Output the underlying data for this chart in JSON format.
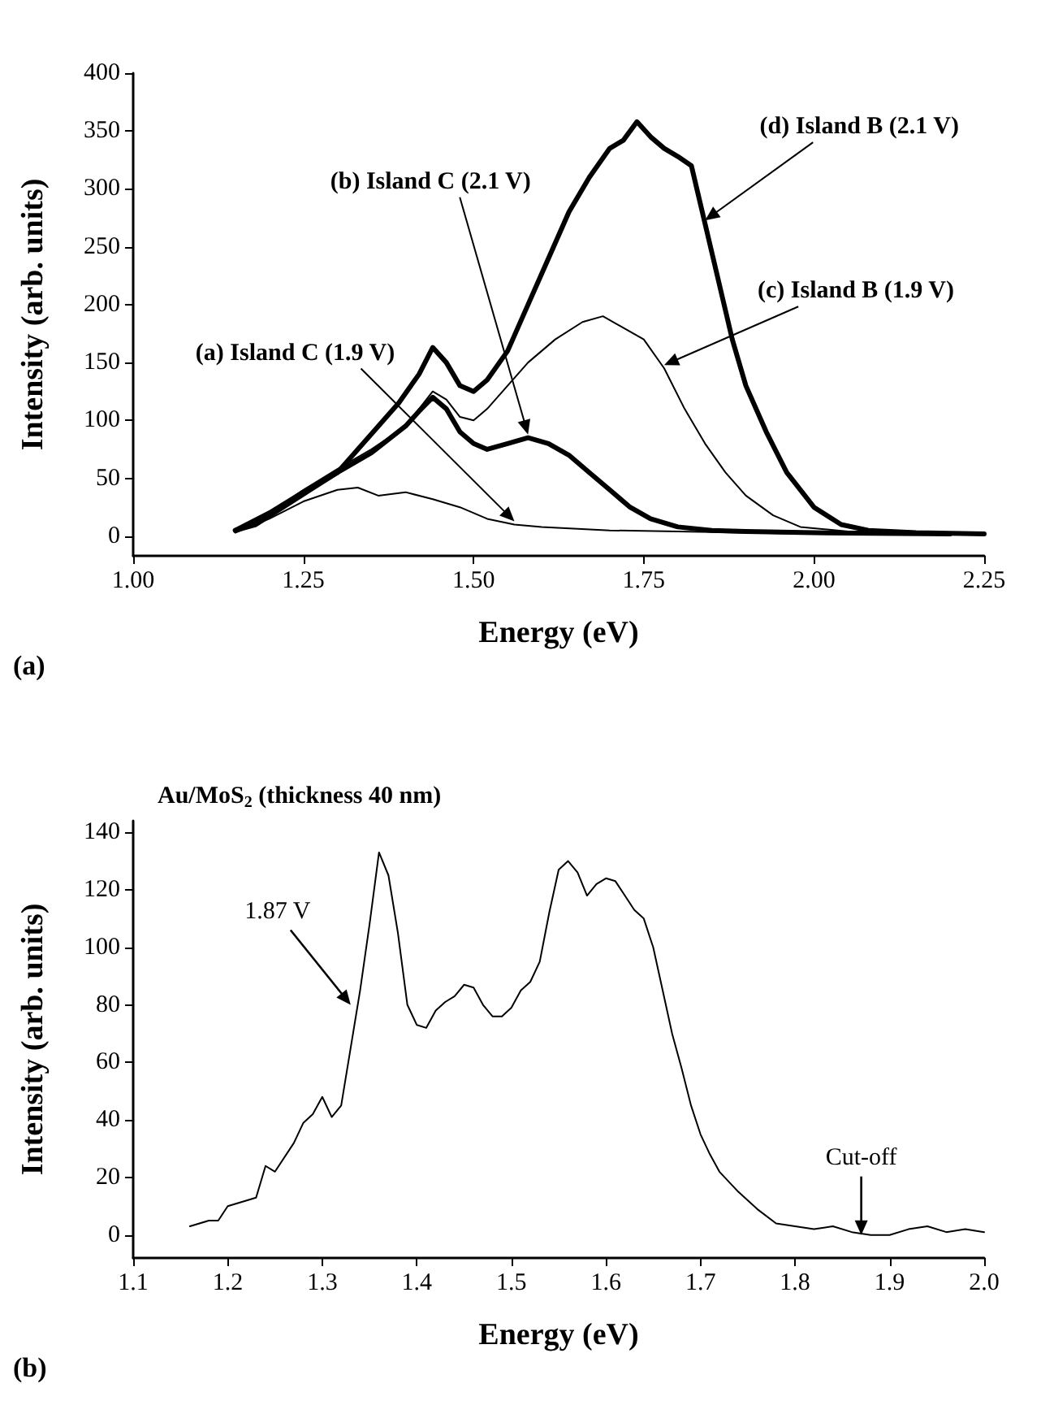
{
  "chart_data": [
    {
      "type": "line",
      "xlabel": "Energy (eV)",
      "ylabel": "Intensity (arb. units)",
      "marker": "none",
      "line_style": "solid",
      "legend": false,
      "grid": false,
      "xlim": [
        1.0,
        2.25
      ],
      "xticks": [
        {
          "value": 1,
          "label": "1.00"
        },
        {
          "value": 1.25,
          "label": "1.25"
        },
        {
          "value": 1.5,
          "label": "1.50"
        },
        {
          "value": 1.75,
          "label": "1.75"
        },
        {
          "value": 2,
          "label": "2.00"
        },
        {
          "value": 2.25,
          "label": "2.25"
        }
      ],
      "ylim": [
        -17,
        400
      ],
      "yticks": [
        0,
        50,
        100,
        150,
        200,
        250,
        300,
        350,
        400
      ],
      "annotations": [
        "(a)"
      ],
      "series": [
        {
          "name": "(a) Island C (1.9 V)",
          "color": "#000000",
          "x": [
            1.15,
            1.2,
            1.25,
            1.3,
            1.33,
            1.36,
            1.4,
            1.44,
            1.48,
            1.52,
            1.56,
            1.6,
            1.7,
            1.8,
            1.9,
            2.0
          ],
          "values": [
            3,
            15,
            30,
            40,
            42,
            35,
            38,
            32,
            25,
            15,
            10,
            8,
            5,
            4,
            3,
            2
          ]
        },
        {
          "name": "(b) Island C (2.1 V)",
          "color": "#000000",
          "x": [
            1.15,
            1.2,
            1.25,
            1.3,
            1.35,
            1.4,
            1.42,
            1.44,
            1.46,
            1.48,
            1.5,
            1.52,
            1.55,
            1.58,
            1.61,
            1.64,
            1.67,
            1.7,
            1.73,
            1.76,
            1.8,
            1.85,
            1.9,
            2.0,
            2.2
          ],
          "values": [
            5,
            20,
            38,
            55,
            72,
            95,
            108,
            120,
            110,
            90,
            80,
            75,
            80,
            85,
            80,
            70,
            55,
            40,
            25,
            15,
            8,
            5,
            4,
            3,
            2
          ]
        },
        {
          "name": "(c) Island B (1.9 V)",
          "color": "#000000",
          "x": [
            1.15,
            1.2,
            1.25,
            1.3,
            1.35,
            1.4,
            1.42,
            1.44,
            1.46,
            1.48,
            1.5,
            1.52,
            1.55,
            1.58,
            1.62,
            1.66,
            1.69,
            1.72,
            1.75,
            1.78,
            1.81,
            1.84,
            1.87,
            1.9,
            1.94,
            1.98,
            2.05,
            2.25
          ],
          "values": [
            5,
            20,
            40,
            58,
            75,
            95,
            110,
            125,
            118,
            103,
            100,
            110,
            130,
            150,
            170,
            185,
            190,
            180,
            170,
            145,
            110,
            80,
            55,
            35,
            18,
            8,
            4,
            2
          ]
        },
        {
          "name": "(d) Island B (2.1 V)",
          "color": "#000000",
          "x": [
            1.15,
            1.18,
            1.22,
            1.26,
            1.3,
            1.33,
            1.36,
            1.39,
            1.42,
            1.44,
            1.46,
            1.48,
            1.5,
            1.52,
            1.55,
            1.58,
            1.61,
            1.64,
            1.67,
            1.7,
            1.72,
            1.74,
            1.76,
            1.78,
            1.8,
            1.82,
            1.84,
            1.86,
            1.88,
            1.9,
            1.93,
            1.96,
            2.0,
            2.04,
            2.08,
            2.15,
            2.25
          ],
          "values": [
            5,
            10,
            25,
            40,
            55,
            75,
            95,
            115,
            140,
            163,
            150,
            130,
            125,
            135,
            160,
            200,
            240,
            280,
            310,
            335,
            342,
            358,
            345,
            335,
            328,
            320,
            270,
            220,
            170,
            130,
            90,
            55,
            25,
            10,
            5,
            3,
            2
          ]
        }
      ]
    },
    {
      "type": "line",
      "title": "Au/MoS$_{2}$ (thickness 40 nm)",
      "xlabel": "Energy (eV)",
      "ylabel": "Intensity (arb. units)",
      "marker": "none",
      "line_style": "solid",
      "legend": false,
      "grid": false,
      "xlim": [
        1.1,
        2.0
      ],
      "xticks": [
        1.1,
        1.2,
        1.3,
        1.4,
        1.5,
        1.6,
        1.7,
        1.8,
        1.9,
        {
          "value": 2,
          "label": "2.0"
        }
      ],
      "ylim": [
        -8,
        144
      ],
      "yticks": [
        0,
        20,
        40,
        60,
        80,
        100,
        120,
        140
      ],
      "annotations": [
        {
          "text": "1.87 V",
          "x": 1.33,
          "y": 80
        },
        {
          "text": "Cut-off",
          "x": 1.87,
          "y": 0
        },
        "(b)"
      ],
      "series": [
        {
          "color": "#000000",
          "x": [
            1.16,
            1.18,
            1.19,
            1.2,
            1.22,
            1.23,
            1.24,
            1.25,
            1.27,
            1.28,
            1.29,
            1.3,
            1.31,
            1.32,
            1.33,
            1.34,
            1.35,
            1.36,
            1.37,
            1.38,
            1.39,
            1.4,
            1.41,
            1.42,
            1.43,
            1.44,
            1.45,
            1.46,
            1.47,
            1.48,
            1.49,
            1.5,
            1.51,
            1.52,
            1.53,
            1.54,
            1.55,
            1.56,
            1.57,
            1.58,
            1.59,
            1.6,
            1.61,
            1.62,
            1.63,
            1.64,
            1.65,
            1.66,
            1.67,
            1.68,
            1.69,
            1.7,
            1.71,
            1.72,
            1.74,
            1.76,
            1.78,
            1.8,
            1.82,
            1.84,
            1.86,
            1.88,
            1.9,
            1.92,
            1.94,
            1.96,
            1.98,
            2.0
          ],
          "values": [
            3,
            5,
            5,
            10,
            12,
            13,
            24,
            22,
            32,
            39,
            42,
            48,
            41,
            45,
            65,
            85,
            108,
            133,
            125,
            105,
            80,
            73,
            72,
            78,
            81,
            83,
            87,
            86,
            80,
            76,
            76,
            79,
            85,
            88,
            95,
            112,
            127,
            130,
            126,
            118,
            122,
            124,
            123,
            118,
            113,
            110,
            100,
            85,
            70,
            58,
            45,
            35,
            28,
            22,
            15,
            9,
            4,
            3,
            2,
            3,
            1,
            0,
            0,
            2,
            3,
            1,
            2,
            1
          ]
        }
      ]
    }
  ]
}
